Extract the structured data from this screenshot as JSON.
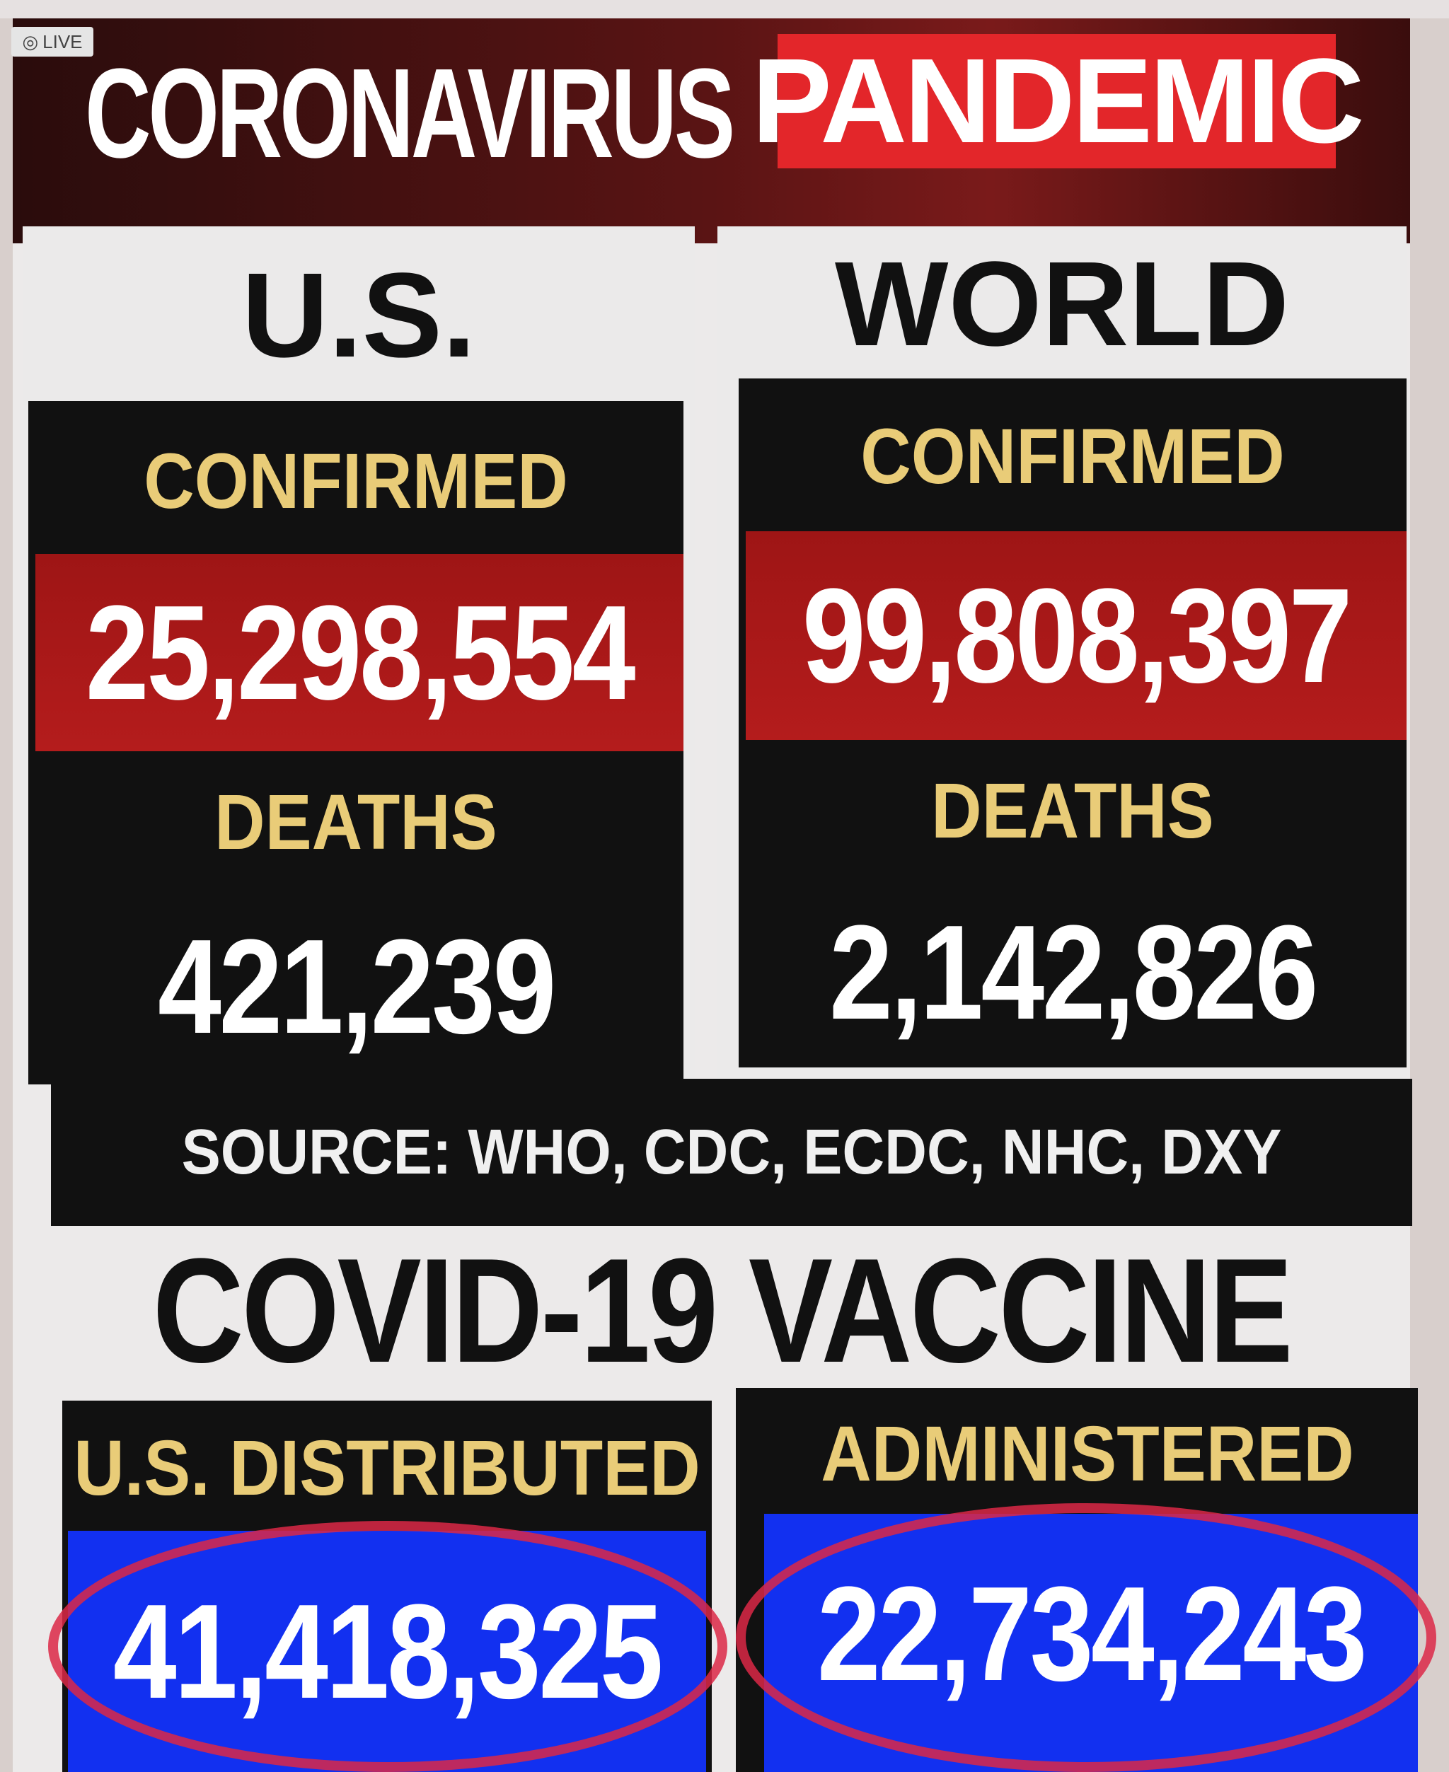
{
  "live_badge": {
    "icon": "broadcast-icon",
    "label": "LIVE"
  },
  "banner": {
    "title": "CORONAVIRUS",
    "highlight": "PANDEMIC",
    "highlight_color": "#e3262a"
  },
  "us": {
    "heading": "U.S.",
    "confirmed_label": "CONFIRMED",
    "confirmed": "25,298,554",
    "deaths_label": "DEATHS",
    "deaths": "421,239"
  },
  "world": {
    "heading": "WORLD",
    "confirmed_label": "CONFIRMED",
    "confirmed": "99,808,397",
    "deaths_label": "DEATHS",
    "deaths": "2,142,826"
  },
  "source": "SOURCE: WHO, CDC, ECDC, NHC, DXY",
  "vaccine": {
    "heading": "COVID-19 VACCINE",
    "distributed_label": "U.S. DISTRIBUTED",
    "distributed": "41,418,325",
    "administered_label": "ADMINISTERED",
    "administered": "22,734,243",
    "number_bg": "#1230f0",
    "annotation_color": "#dc2846"
  }
}
